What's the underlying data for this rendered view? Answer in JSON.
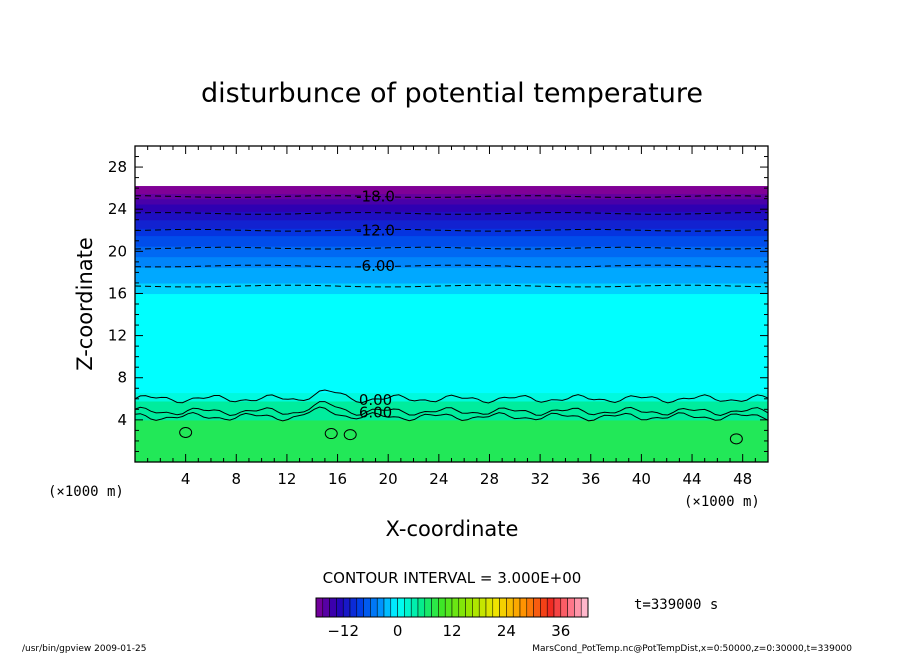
{
  "chart_data": {
    "type": "heatmap",
    "title": "disturbunce of potential temperature",
    "xlabel": "X-coordinate",
    "ylabel": "Z-coordinate",
    "x_unit": "(×1000 m)",
    "x_unit_right": "(×1000 m)",
    "xlim": [
      0,
      50
    ],
    "ylim": [
      0,
      30
    ],
    "x_ticks": [
      4,
      8,
      12,
      16,
      20,
      24,
      28,
      32,
      36,
      40,
      44,
      48
    ],
    "y_ticks": [
      4,
      8,
      12,
      16,
      20,
      24,
      28
    ],
    "field_layers": [
      {
        "z0": 0.0,
        "z1": 4.0,
        "value": 7.5
      },
      {
        "z0": 4.0,
        "z1": 5.8,
        "value": 4.5
      },
      {
        "z0": 5.8,
        "z1": 6.6,
        "value": 1.5
      },
      {
        "z0": 6.6,
        "z1": 16.0,
        "value": 0.0
      },
      {
        "z0": 16.0,
        "z1": 17.0,
        "value": -1.5
      },
      {
        "z0": 17.0,
        "z1": 18.5,
        "value": -3.0
      },
      {
        "z0": 18.5,
        "z1": 19.5,
        "value": -4.5
      },
      {
        "z0": 19.5,
        "z1": 20.5,
        "value": -6.0
      },
      {
        "z0": 20.5,
        "z1": 21.5,
        "value": -7.5
      },
      {
        "z0": 21.5,
        "z1": 22.2,
        "value": -9.0
      },
      {
        "z0": 22.2,
        "z1": 23.0,
        "value": -10.5
      },
      {
        "z0": 23.0,
        "z1": 23.8,
        "value": -12.0
      },
      {
        "z0": 23.8,
        "z1": 24.5,
        "value": -13.5
      },
      {
        "z0": 24.5,
        "z1": 25.0,
        "value": -15.0
      },
      {
        "z0": 25.0,
        "z1": 25.5,
        "value": -16.5
      },
      {
        "z0": 25.5,
        "z1": 26.2,
        "value": -18.0
      }
    ],
    "contours": [
      {
        "z": 6.0,
        "label": "0.00",
        "dashed": false
      },
      {
        "z": 4.8,
        "label": "6.00",
        "dashed": false
      },
      {
        "z": 4.3,
        "label": "",
        "dashed": false
      },
      {
        "z": 16.7,
        "label": "",
        "dashed": true
      },
      {
        "z": 18.6,
        "label": "-6.00",
        "dashed": true
      },
      {
        "z": 20.3,
        "label": "",
        "dashed": true
      },
      {
        "z": 22.0,
        "label": "-12.0",
        "dashed": true
      },
      {
        "z": 23.6,
        "label": "",
        "dashed": true
      },
      {
        "z": 25.2,
        "label": "-18.0",
        "dashed": true
      }
    ],
    "contour_interval_text": "CONTOUR INTERVAL = 3.000E+00",
    "colorbar": {
      "min": -18,
      "max": 42,
      "step": 1.5,
      "tick_values": [
        -12,
        0,
        12,
        24,
        36
      ],
      "tick_labels": [
        "−12",
        "0",
        "12",
        "24",
        "36"
      ]
    },
    "time_text": "t=339000 s",
    "footer_left": "/usr/bin/gpview   2009-01-25",
    "footer_right": "MarsCond_PotTemp.nc@PotTempDist,x=0:50000,z=0:30000,t=339000"
  }
}
